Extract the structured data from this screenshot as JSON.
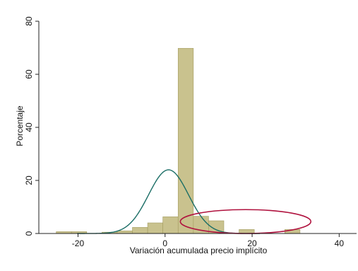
{
  "chart_data": {
    "type": "bar",
    "xlabel": "Variación acumulada precio implícito",
    "ylabel": "Porcentaje",
    "xlim": [
      -29,
      44
    ],
    "ylim": [
      0,
      80
    ],
    "x_ticks": [
      -20,
      0,
      20,
      40
    ],
    "y_ticks": [
      0,
      20,
      40,
      60,
      80
    ],
    "x_tick_labels": [
      "-20",
      "0",
      "20",
      "40"
    ],
    "y_tick_labels": [
      "0",
      "20",
      "40",
      "60",
      "80"
    ],
    "grid": false,
    "bin_width": 3.5,
    "series": [
      {
        "type": "histogram",
        "bins": [
          {
            "x0": -25.0,
            "x1": -21.5,
            "value": 0.7
          },
          {
            "x0": -21.5,
            "x1": -18.0,
            "value": 0.7
          },
          {
            "x0": -14.5,
            "x1": -11.0,
            "value": 0.5
          },
          {
            "x0": -11.0,
            "x1": -7.5,
            "value": 1.0
          },
          {
            "x0": -7.5,
            "x1": -4.0,
            "value": 2.3
          },
          {
            "x0": -4.0,
            "x1": -0.5,
            "value": 4.0
          },
          {
            "x0": -0.5,
            "x1": 3.0,
            "value": 6.3
          },
          {
            "x0": 3.0,
            "x1": 6.5,
            "value": 69.8
          },
          {
            "x0": 6.5,
            "x1": 10.0,
            "value": 6.5
          },
          {
            "x0": 10.0,
            "x1": 13.5,
            "value": 4.8
          },
          {
            "x0": 17.0,
            "x1": 20.5,
            "value": 1.5
          },
          {
            "x0": 27.5,
            "x1": 31.0,
            "value": 1.5
          }
        ]
      },
      {
        "type": "normal-density-line",
        "mean": 0,
        "sd": 4.6,
        "peak": 24
      }
    ],
    "annotation": {
      "type": "ellipse",
      "x_center": 18.5,
      "y_center": 4.5,
      "x_radius": 15,
      "y_radius": 4.5
    }
  },
  "colors": {
    "bar_fill": "#c9c28e",
    "bar_stroke": "#a39c5f",
    "density": "#1b6e66",
    "annotation": "#b0123e",
    "axis": "#222222"
  }
}
